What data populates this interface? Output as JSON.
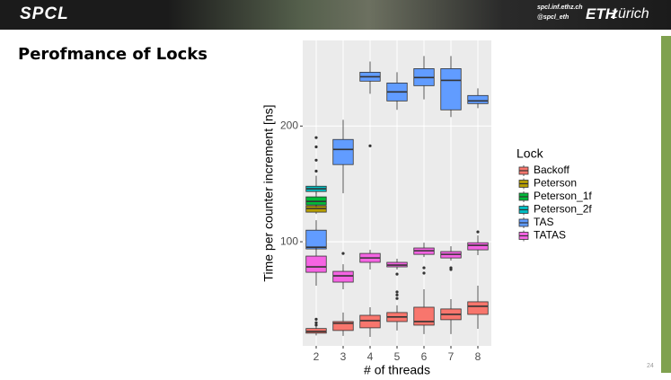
{
  "header": {
    "logo": "SPCL",
    "url": "spcl.inf.ethz.ch",
    "twitter": "@spcl_eth",
    "eth": "ETH",
    "zurich": "zürich"
  },
  "slide": {
    "title": "Perofmance of Locks",
    "page_number": "24"
  },
  "chart_data": {
    "type": "boxplot",
    "x_label": "# of threads",
    "y_label": "Time per counter increment [ns]",
    "categories": [
      "2",
      "3",
      "4",
      "5",
      "6",
      "7",
      "8"
    ],
    "ylim": [
      10,
      274
    ],
    "yticks": [
      100,
      200
    ],
    "grid": true,
    "legend_title": "Lock",
    "legend_position": "right",
    "series": [
      {
        "name": "Backoff",
        "color": "#F8766D",
        "boxes": [
          {
            "min": 19,
            "q1": 21,
            "median": 22.5,
            "q3": 25,
            "max": 27,
            "outliers": [
              28,
              30,
              33
            ]
          },
          {
            "min": 18.6,
            "q1": 23.3,
            "median": 29.5,
            "q3": 31,
            "max": 38.8,
            "outliers": []
          },
          {
            "min": 17.8,
            "q1": 25.6,
            "median": 31.8,
            "q3": 36.4,
            "max": 43.4,
            "outliers": []
          },
          {
            "min": 23.3,
            "q1": 31,
            "median": 35,
            "q3": 38.8,
            "max": 45,
            "outliers": [
              51,
              54,
              56.6
            ]
          },
          {
            "min": 20.2,
            "q1": 27.9,
            "median": 31,
            "q3": 43.4,
            "max": 58.9,
            "outliers": []
          },
          {
            "min": 20.2,
            "q1": 32.6,
            "median": 37.2,
            "q3": 41.9,
            "max": 50.4,
            "outliers": []
          },
          {
            "min": 24.8,
            "q1": 37.2,
            "median": 44.2,
            "q3": 48.1,
            "max": 62,
            "outliers": []
          }
        ]
      },
      {
        "name": "Peterson",
        "color": "#B79F00",
        "boxes": [
          {
            "min": 124,
            "q1": 125.6,
            "median": 128.7,
            "q3": 131,
            "max": 133.3,
            "outliers": []
          },
          null,
          null,
          null,
          null,
          null,
          null
        ]
      },
      {
        "name": "Peterson_1f",
        "color": "#00BA38",
        "boxes": [
          {
            "min": 130,
            "q1": 131.8,
            "median": 134.9,
            "q3": 138.8,
            "max": 142.6,
            "outliers": []
          },
          null,
          null,
          null,
          null,
          null,
          null
        ]
      },
      {
        "name": "Peterson_2f",
        "color": "#00BFC4",
        "boxes": [
          {
            "min": 141,
            "q1": 143.4,
            "median": 145.7,
            "q3": 148,
            "max": 157,
            "outliers": [
              161,
              170.5,
              182,
              190
            ]
          },
          null,
          null,
          null,
          null,
          null,
          null
        ]
      },
      {
        "name": "TAS",
        "color": "#619CFF",
        "boxes": [
          {
            "min": 93,
            "q1": 93.8,
            "median": 95.3,
            "q3": 110,
            "max": 118.6,
            "outliers": []
          },
          {
            "min": 141.9,
            "q1": 166.7,
            "median": 179.8,
            "q3": 188.4,
            "max": 205.4,
            "outliers": []
          },
          {
            "min": 227.9,
            "q1": 238.8,
            "median": 242.6,
            "q3": 246.5,
            "max": 255.8,
            "outliers": [
              182.9
            ]
          },
          {
            "min": 214,
            "q1": 221.7,
            "median": 229.5,
            "q3": 237.2,
            "max": 246.5,
            "outliers": []
          },
          {
            "min": 223,
            "q1": 234.9,
            "median": 241.9,
            "q3": 249.6,
            "max": 260.5,
            "outliers": []
          },
          {
            "min": 207.8,
            "q1": 214,
            "median": 239.5,
            "q3": 249.6,
            "max": 260.5,
            "outliers": []
          },
          {
            "min": 215.5,
            "q1": 219.4,
            "median": 221.7,
            "q3": 226.4,
            "max": 232.6,
            "outliers": []
          }
        ]
      },
      {
        "name": "TATAS",
        "color": "#F564E3",
        "boxes": [
          {
            "min": 62,
            "q1": 73.6,
            "median": 78.3,
            "q3": 87.6,
            "max": 95.3,
            "outliers": []
          },
          {
            "min": 58.9,
            "q1": 65.1,
            "median": 70.5,
            "q3": 74.4,
            "max": 80.6,
            "outliers": [
              89.9
            ]
          },
          {
            "min": 76,
            "q1": 82.2,
            "median": 86,
            "q3": 89.9,
            "max": 93,
            "outliers": []
          },
          {
            "min": 76,
            "q1": 78.3,
            "median": 79.8,
            "q3": 82.2,
            "max": 85.3,
            "outliers": [
              72
            ]
          },
          {
            "min": 86.8,
            "q1": 89.1,
            "median": 92.2,
            "q3": 94.6,
            "max": 99.2,
            "outliers": [
              72.9,
              77.5
            ]
          },
          {
            "min": 83.7,
            "q1": 86,
            "median": 89.1,
            "q3": 91.5,
            "max": 96.1,
            "outliers": [
              76,
              77.5
            ]
          },
          {
            "min": 88.4,
            "q1": 93,
            "median": 96.9,
            "q3": 99.2,
            "max": 105.4,
            "outliers": [
              108.5
            ]
          }
        ]
      }
    ]
  }
}
